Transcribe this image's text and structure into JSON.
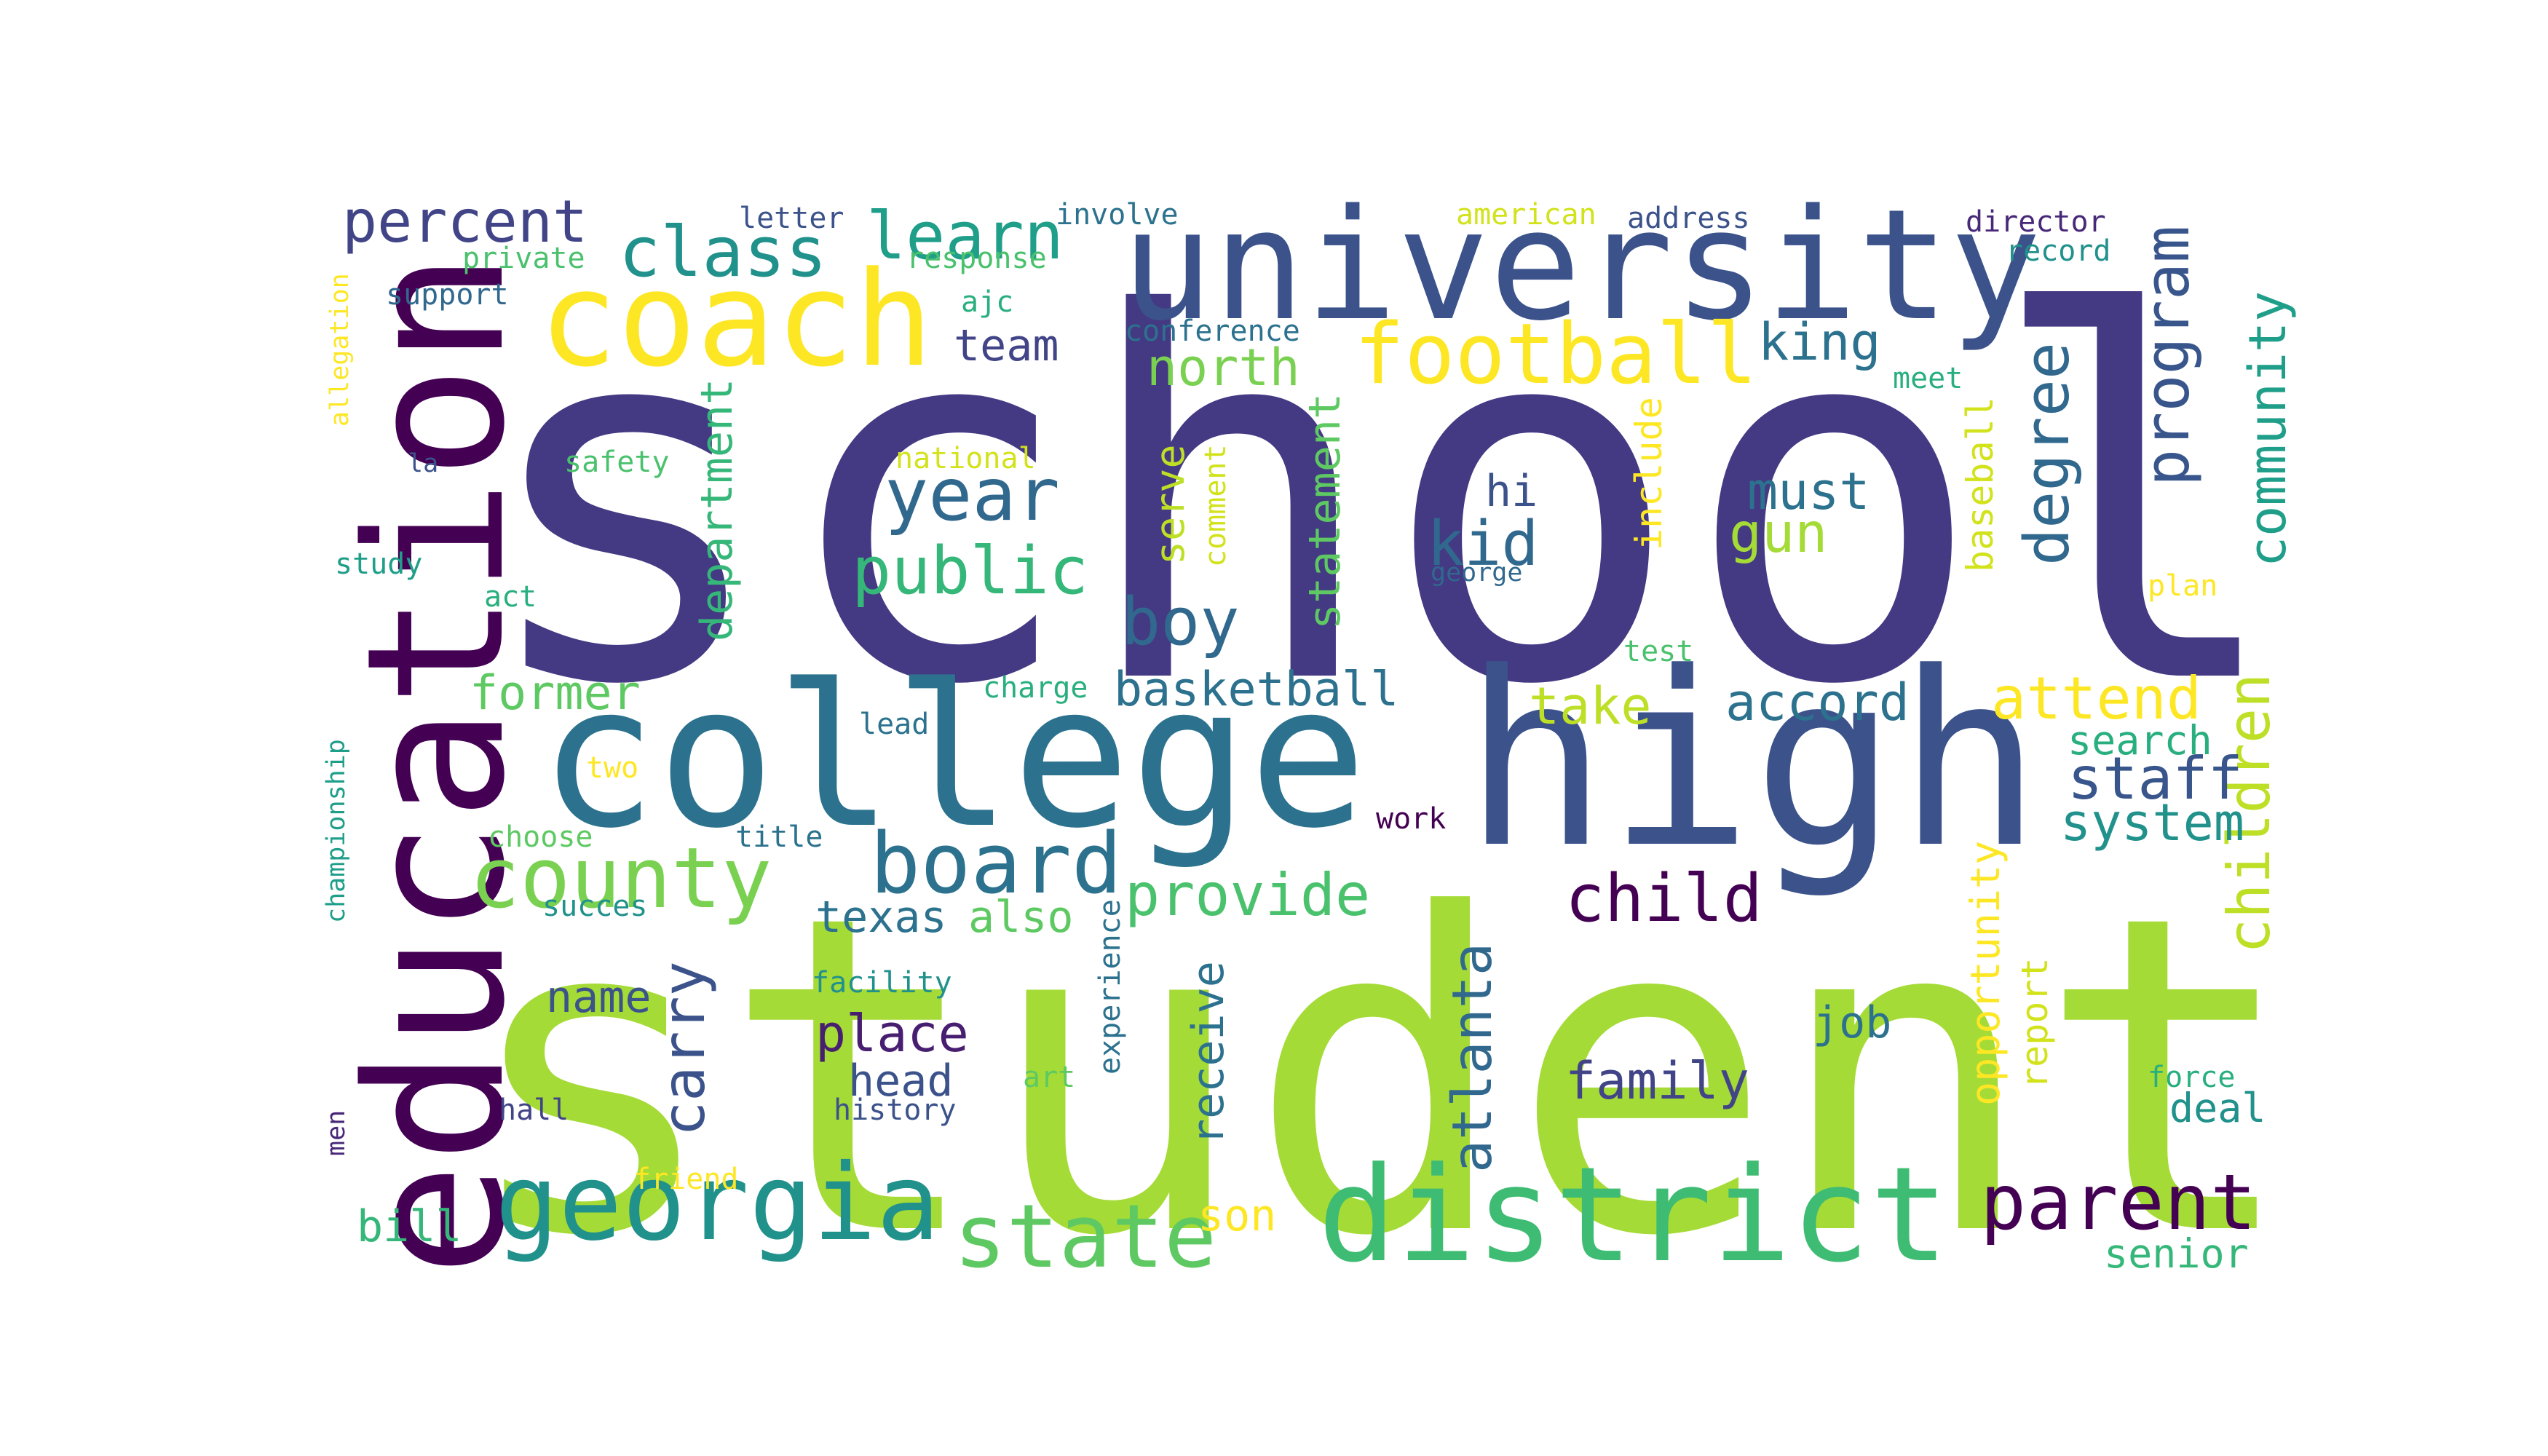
{
  "image": {
    "background": "#ffffff"
  },
  "words": [
    {
      "key": "school",
      "text": "school",
      "color": "#443983",
      "vertical": false
    },
    {
      "key": "student",
      "text": "student",
      "color": "#a5db36",
      "vertical": false
    },
    {
      "key": "high",
      "text": "high",
      "color": "#3b528b",
      "vertical": false
    },
    {
      "key": "college",
      "text": "college",
      "color": "#2c728e",
      "vertical": false
    },
    {
      "key": "university",
      "text": "university",
      "color": "#3b528b",
      "vertical": false
    },
    {
      "key": "education",
      "text": "education",
      "color": "#440154",
      "vertical": true
    },
    {
      "key": "coach",
      "text": "coach",
      "color": "#fde725",
      "vertical": false
    },
    {
      "key": "district",
      "text": "district",
      "color": "#3fbc73",
      "vertical": false
    },
    {
      "key": "georgia",
      "text": "georgia",
      "color": "#21918c",
      "vertical": false
    },
    {
      "key": "football",
      "text": "football",
      "color": "#fde725",
      "vertical": false
    },
    {
      "key": "county",
      "text": "county",
      "color": "#7ad151",
      "vertical": false
    },
    {
      "key": "board",
      "text": "board",
      "color": "#2c728e",
      "vertical": false
    },
    {
      "key": "state",
      "text": "state",
      "color": "#5ec962",
      "vertical": false
    },
    {
      "key": "parent",
      "text": "parent",
      "color": "#440154",
      "vertical": false
    },
    {
      "key": "class",
      "text": "class",
      "color": "#21918c",
      "vertical": false
    },
    {
      "key": "learn",
      "text": "learn",
      "color": "#1f9e89",
      "vertical": false
    },
    {
      "key": "percent",
      "text": "percent",
      "color": "#414487",
      "vertical": false
    },
    {
      "key": "year",
      "text": "year",
      "color": "#31688e",
      "vertical": false
    },
    {
      "key": "public",
      "text": "public",
      "color": "#35b779",
      "vertical": false
    },
    {
      "key": "boy",
      "text": "boy",
      "color": "#31688e",
      "vertical": false
    },
    {
      "key": "kid",
      "text": "kid",
      "color": "#31688e",
      "vertical": false
    },
    {
      "key": "child",
      "text": "child",
      "color": "#440154",
      "vertical": false
    },
    {
      "key": "provide",
      "text": "provide",
      "color": "#4ac16d",
      "vertical": false
    },
    {
      "key": "program",
      "text": "program",
      "color": "#39568c",
      "vertical": true
    },
    {
      "key": "degree",
      "text": "degree",
      "color": "#31688e",
      "vertical": true
    },
    {
      "key": "community",
      "text": "community",
      "color": "#1f9e89",
      "vertical": true
    },
    {
      "key": "children",
      "text": "children",
      "color": "#bddf26",
      "vertical": true
    },
    {
      "key": "attend",
      "text": "attend",
      "color": "#fde725",
      "vertical": false
    },
    {
      "key": "staff",
      "text": "staff",
      "color": "#39568c",
      "vertical": false
    },
    {
      "key": "system",
      "text": "system",
      "color": "#21918c",
      "vertical": false
    },
    {
      "key": "search",
      "text": "search",
      "color": "#29af7f",
      "vertical": false
    },
    {
      "key": "accord",
      "text": "accord",
      "color": "#2c728e",
      "vertical": false
    },
    {
      "key": "take",
      "text": "take",
      "color": "#bddf26",
      "vertical": false
    },
    {
      "key": "king",
      "text": "king",
      "color": "#2c728e",
      "vertical": false
    },
    {
      "key": "must",
      "text": "must",
      "color": "#2c728e",
      "vertical": false
    },
    {
      "key": "gun",
      "text": "gun",
      "color": "#a5db36",
      "vertical": false
    },
    {
      "key": "north",
      "text": "north",
      "color": "#7ad151",
      "vertical": false
    },
    {
      "key": "team",
      "text": "team",
      "color": "#414487",
      "vertical": false
    },
    {
      "key": "hi",
      "text": "hi",
      "color": "#3b528b",
      "vertical": false
    },
    {
      "key": "basketball",
      "text": "basketball",
      "color": "#2c728e",
      "vertical": false
    },
    {
      "key": "former",
      "text": "former",
      "color": "#5ec962",
      "vertical": false
    },
    {
      "key": "department",
      "text": "department",
      "color": "#35b779",
      "vertical": true
    },
    {
      "key": "statement",
      "text": "statement",
      "color": "#5ec962",
      "vertical": true
    },
    {
      "key": "serve",
      "text": "serve",
      "color": "#bddf26",
      "vertical": true
    },
    {
      "key": "comment",
      "text": "comment",
      "color": "#d2e21b",
      "vertical": true
    },
    {
      "key": "include",
      "text": "include",
      "color": "#fde725",
      "vertical": true
    },
    {
      "key": "baseball",
      "text": "baseball",
      "color": "#d2e21b",
      "vertical": true
    },
    {
      "key": "texas",
      "text": "texas",
      "color": "#2c728e",
      "vertical": false
    },
    {
      "key": "also",
      "text": "also",
      "color": "#5ec962",
      "vertical": false
    },
    {
      "key": "name",
      "text": "name",
      "color": "#3b528b",
      "vertical": false
    },
    {
      "key": "carry",
      "text": "carry",
      "color": "#3b528b",
      "vertical": true
    },
    {
      "key": "place",
      "text": "place",
      "color": "#481f70",
      "vertical": false
    },
    {
      "key": "head",
      "text": "head",
      "color": "#3b528b",
      "vertical": false
    },
    {
      "key": "receive",
      "text": "receive",
      "color": "#2c728e",
      "vertical": true
    },
    {
      "key": "atlanta",
      "text": "atlanta",
      "color": "#31688e",
      "vertical": true
    },
    {
      "key": "family",
      "text": "family",
      "color": "#414487",
      "vertical": false
    },
    {
      "key": "job",
      "text": "job",
      "color": "#2c728e",
      "vertical": false
    },
    {
      "key": "opportunity",
      "text": "opportunity",
      "color": "#fde725",
      "vertical": true
    },
    {
      "key": "report",
      "text": "report",
      "color": "#d2e21b",
      "vertical": true
    },
    {
      "key": "deal",
      "text": "deal",
      "color": "#21918c",
      "vertical": false
    },
    {
      "key": "force",
      "text": "force",
      "color": "#29af7f",
      "vertical": false
    },
    {
      "key": "senior",
      "text": "senior",
      "color": "#35b779",
      "vertical": false
    },
    {
      "key": "son",
      "text": "son",
      "color": "#fde725",
      "vertical": false
    },
    {
      "key": "bill",
      "text": "bill",
      "color": "#35b779",
      "vertical": false
    },
    {
      "key": "experience",
      "text": "experience",
      "color": "#2c728e",
      "vertical": true
    },
    {
      "key": "history",
      "text": "history",
      "color": "#3b528b",
      "vertical": false
    },
    {
      "key": "art",
      "text": "art",
      "color": "#5ec962",
      "vertical": false
    },
    {
      "key": "facility",
      "text": "facility",
      "color": "#21918c",
      "vertical": false
    },
    {
      "key": "letter",
      "text": "letter",
      "color": "#3b528b",
      "vertical": false
    },
    {
      "key": "involve",
      "text": "involve",
      "color": "#2c728e",
      "vertical": false
    },
    {
      "key": "private",
      "text": "private",
      "color": "#4ac16d",
      "vertical": false
    },
    {
      "key": "response",
      "text": "response",
      "color": "#4ac16d",
      "vertical": false
    },
    {
      "key": "support",
      "text": "support",
      "color": "#31688e",
      "vertical": false
    },
    {
      "key": "ajc",
      "text": "ajc",
      "color": "#29af7f",
      "vertical": false
    },
    {
      "key": "conference",
      "text": "conference",
      "color": "#2c728e",
      "vertical": false
    },
    {
      "key": "american",
      "text": "american",
      "color": "#d2e21b",
      "vertical": false
    },
    {
      "key": "address",
      "text": "address",
      "color": "#3b528b",
      "vertical": false
    },
    {
      "key": "director",
      "text": "director",
      "color": "#482878",
      "vertical": false
    },
    {
      "key": "record",
      "text": "record",
      "color": "#21918c",
      "vertical": false
    },
    {
      "key": "meet",
      "text": "meet",
      "color": "#29af7f",
      "vertical": false
    },
    {
      "key": "allegation",
      "text": "allegation",
      "color": "#fde725",
      "vertical": true
    },
    {
      "key": "la",
      "text": "la",
      "color": "#3b528b",
      "vertical": false
    },
    {
      "key": "safety",
      "text": "safety",
      "color": "#4ac16d",
      "vertical": false
    },
    {
      "key": "national",
      "text": "national",
      "color": "#d2e21b",
      "vertical": false
    },
    {
      "key": "study",
      "text": "study",
      "color": "#1f9e89",
      "vertical": false
    },
    {
      "key": "act",
      "text": "act",
      "color": "#29af7f",
      "vertical": false
    },
    {
      "key": "george",
      "text": "george",
      "color": "#31688e",
      "vertical": false
    },
    {
      "key": "plan",
      "text": "plan",
      "color": "#fde725",
      "vertical": false
    },
    {
      "key": "test",
      "text": "test",
      "color": "#4ac16d",
      "vertical": false
    },
    {
      "key": "charge",
      "text": "charge",
      "color": "#29af7f",
      "vertical": false
    },
    {
      "key": "lead",
      "text": "lead",
      "color": "#2c728e",
      "vertical": false
    },
    {
      "key": "two",
      "text": "two",
      "color": "#fde725",
      "vertical": false
    },
    {
      "key": "choose",
      "text": "choose",
      "color": "#5ec962",
      "vertical": false
    },
    {
      "key": "title",
      "text": "title",
      "color": "#2c728e",
      "vertical": false
    },
    {
      "key": "work",
      "text": "work",
      "color": "#440154",
      "vertical": false
    },
    {
      "key": "succes",
      "text": "succes",
      "color": "#21918c",
      "vertical": false
    },
    {
      "key": "championship",
      "text": "championship",
      "color": "#1f9e89",
      "vertical": true
    },
    {
      "key": "men",
      "text": "men",
      "color": "#482878",
      "vertical": true
    },
    {
      "key": "hall",
      "text": "hall",
      "color": "#414487",
      "vertical": false
    },
    {
      "key": "friend",
      "text": "friend",
      "color": "#fde725",
      "vertical": false
    }
  ]
}
